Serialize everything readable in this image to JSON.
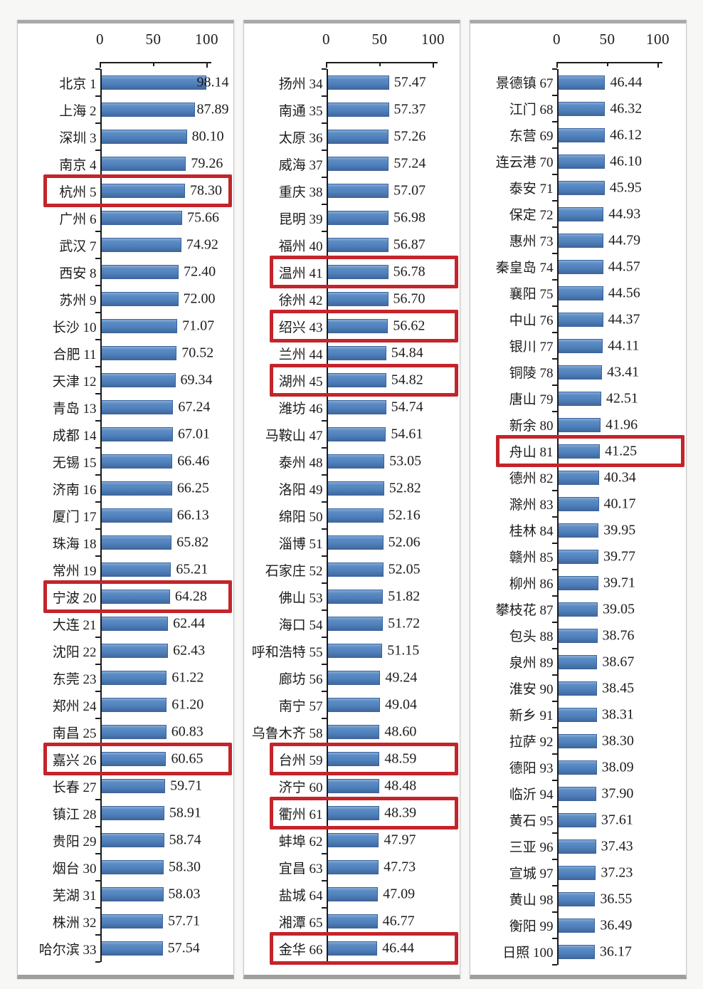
{
  "chart_data": [
    {
      "type": "bar",
      "orientation": "horizontal",
      "title": "",
      "xlabel": "",
      "ylabel": "",
      "xlim": [
        0,
        100
      ],
      "x_ticks": [
        "0",
        "50",
        "100"
      ],
      "grid": false,
      "bar_color": "#4f81bd",
      "highlight_box_color": "#c4242b",
      "rows": [
        {
          "label": "北京 1",
          "value": 98.14,
          "text": "98.14"
        },
        {
          "label": "上海 2",
          "value": 87.89,
          "text": "87.89"
        },
        {
          "label": "深圳 3",
          "value": 80.1,
          "text": "80.10"
        },
        {
          "label": "南京 4",
          "value": 79.26,
          "text": "79.26"
        },
        {
          "label": "杭州 5",
          "value": 78.3,
          "text": "78.30",
          "highlight": true
        },
        {
          "label": "广州 6",
          "value": 75.66,
          "text": "75.66"
        },
        {
          "label": "武汉 7",
          "value": 74.92,
          "text": "74.92"
        },
        {
          "label": "西安 8",
          "value": 72.4,
          "text": "72.40"
        },
        {
          "label": "苏州 9",
          "value": 72.0,
          "text": "72.00"
        },
        {
          "label": "长沙 10",
          "value": 71.07,
          "text": "71.07"
        },
        {
          "label": "合肥 11",
          "value": 70.52,
          "text": "70.52"
        },
        {
          "label": "天津 12",
          "value": 69.34,
          "text": "69.34"
        },
        {
          "label": "青岛 13",
          "value": 67.24,
          "text": "67.24"
        },
        {
          "label": "成都 14",
          "value": 67.01,
          "text": "67.01"
        },
        {
          "label": "无锡 15",
          "value": 66.46,
          "text": "66.46"
        },
        {
          "label": "济南 16",
          "value": 66.25,
          "text": "66.25"
        },
        {
          "label": "厦门 17",
          "value": 66.13,
          "text": "66.13"
        },
        {
          "label": "珠海 18",
          "value": 65.82,
          "text": "65.82"
        },
        {
          "label": "常州 19",
          "value": 65.21,
          "text": "65.21"
        },
        {
          "label": "宁波 20",
          "value": 64.28,
          "text": "64.28",
          "highlight": true
        },
        {
          "label": "大连 21",
          "value": 62.44,
          "text": "62.44"
        },
        {
          "label": "沈阳 22",
          "value": 62.43,
          "text": "62.43"
        },
        {
          "label": "东莞 23",
          "value": 61.22,
          "text": "61.22"
        },
        {
          "label": "郑州 24",
          "value": 61.2,
          "text": "61.20"
        },
        {
          "label": "南昌 25",
          "value": 60.83,
          "text": "60.83"
        },
        {
          "label": "嘉兴 26",
          "value": 60.65,
          "text": "60.65",
          "highlight": true
        },
        {
          "label": "长春 27",
          "value": 59.71,
          "text": "59.71"
        },
        {
          "label": "镇江 28",
          "value": 58.91,
          "text": "58.91"
        },
        {
          "label": "贵阳 29",
          "value": 58.74,
          "text": "58.74"
        },
        {
          "label": "烟台 30",
          "value": 58.3,
          "text": "58.30"
        },
        {
          "label": "芜湖 31",
          "value": 58.03,
          "text": "58.03"
        },
        {
          "label": "株洲 32",
          "value": 57.71,
          "text": "57.71"
        },
        {
          "label": "哈尔滨 33",
          "value": 57.54,
          "text": "57.54"
        }
      ]
    },
    {
      "type": "bar",
      "orientation": "horizontal",
      "title": "",
      "xlabel": "",
      "ylabel": "",
      "xlim": [
        0,
        100
      ],
      "x_ticks": [
        "0",
        "50",
        "100"
      ],
      "grid": false,
      "bar_color": "#4f81bd",
      "highlight_box_color": "#c4242b",
      "rows": [
        {
          "label": "扬州 34",
          "value": 57.47,
          "text": "57.47"
        },
        {
          "label": "南通 35",
          "value": 57.37,
          "text": "57.37"
        },
        {
          "label": "太原 36",
          "value": 57.26,
          "text": "57.26"
        },
        {
          "label": "威海 37",
          "value": 57.24,
          "text": "57.24"
        },
        {
          "label": "重庆 38",
          "value": 57.07,
          "text": "57.07"
        },
        {
          "label": "昆明 39",
          "value": 56.98,
          "text": "56.98"
        },
        {
          "label": "福州 40",
          "value": 56.87,
          "text": "56.87"
        },
        {
          "label": "温州 41",
          "value": 56.78,
          "text": "56.78",
          "highlight": true
        },
        {
          "label": "徐州 42",
          "value": 56.7,
          "text": "56.70"
        },
        {
          "label": "绍兴 43",
          "value": 56.62,
          "text": "56.62",
          "highlight": true
        },
        {
          "label": "兰州 44",
          "value": 54.84,
          "text": "54.84"
        },
        {
          "label": "湖州 45",
          "value": 54.82,
          "text": "54.82",
          "highlight": true
        },
        {
          "label": "潍坊 46",
          "value": 54.74,
          "text": "54.74"
        },
        {
          "label": "马鞍山 47",
          "value": 54.61,
          "text": "54.61"
        },
        {
          "label": "泰州 48",
          "value": 53.05,
          "text": "53.05"
        },
        {
          "label": "洛阳 49",
          "value": 52.82,
          "text": "52.82"
        },
        {
          "label": "绵阳 50",
          "value": 52.16,
          "text": "52.16"
        },
        {
          "label": "淄博 51",
          "value": 52.06,
          "text": "52.06"
        },
        {
          "label": "石家庄 52",
          "value": 52.05,
          "text": "52.05"
        },
        {
          "label": "佛山 53",
          "value": 51.82,
          "text": "51.82"
        },
        {
          "label": "海口 54",
          "value": 51.72,
          "text": "51.72"
        },
        {
          "label": "呼和浩特 55",
          "value": 51.15,
          "text": "51.15"
        },
        {
          "label": "廊坊 56",
          "value": 49.24,
          "text": "49.24"
        },
        {
          "label": "南宁 57",
          "value": 49.04,
          "text": "49.04"
        },
        {
          "label": "乌鲁木齐 58",
          "value": 48.6,
          "text": "48.60"
        },
        {
          "label": "台州 59",
          "value": 48.59,
          "text": "48.59",
          "highlight": true
        },
        {
          "label": "济宁 60",
          "value": 48.48,
          "text": "48.48"
        },
        {
          "label": "衢州 61",
          "value": 48.39,
          "text": "48.39",
          "highlight": true
        },
        {
          "label": "蚌埠 62",
          "value": 47.97,
          "text": "47.97"
        },
        {
          "label": "宜昌 63",
          "value": 47.73,
          "text": "47.73"
        },
        {
          "label": "盐城 64",
          "value": 47.09,
          "text": "47.09"
        },
        {
          "label": "湘潭 65",
          "value": 46.77,
          "text": "46.77"
        },
        {
          "label": "金华 66",
          "value": 46.44,
          "text": "46.44",
          "highlight": true
        }
      ]
    },
    {
      "type": "bar",
      "orientation": "horizontal",
      "title": "",
      "xlabel": "",
      "ylabel": "",
      "xlim": [
        0,
        100
      ],
      "x_ticks": [
        "0",
        "50",
        "100"
      ],
      "grid": false,
      "bar_color": "#4f81bd",
      "highlight_box_color": "#c4242b",
      "rows": [
        {
          "label": "景德镇 67",
          "value": 46.44,
          "text": "46.44"
        },
        {
          "label": "江门 68",
          "value": 46.32,
          "text": "46.32"
        },
        {
          "label": "东营 69",
          "value": 46.12,
          "text": "46.12"
        },
        {
          "label": "连云港 70",
          "value": 46.1,
          "text": "46.10"
        },
        {
          "label": "泰安 71",
          "value": 45.95,
          "text": "45.95"
        },
        {
          "label": "保定 72",
          "value": 44.93,
          "text": "44.93"
        },
        {
          "label": "惠州 73",
          "value": 44.79,
          "text": "44.79"
        },
        {
          "label": "秦皇岛 74",
          "value": 44.57,
          "text": "44.57"
        },
        {
          "label": "襄阳 75",
          "value": 44.56,
          "text": "44.56"
        },
        {
          "label": "中山 76",
          "value": 44.37,
          "text": "44.37"
        },
        {
          "label": "银川 77",
          "value": 44.11,
          "text": "44.11"
        },
        {
          "label": "铜陵 78",
          "value": 43.41,
          "text": "43.41"
        },
        {
          "label": "唐山 79",
          "value": 42.51,
          "text": "42.51"
        },
        {
          "label": "新余 80",
          "value": 41.96,
          "text": "41.96"
        },
        {
          "label": "舟山 81",
          "value": 41.25,
          "text": "41.25",
          "highlight": true
        },
        {
          "label": "德州 82",
          "value": 40.34,
          "text": "40.34"
        },
        {
          "label": "滁州 83",
          "value": 40.17,
          "text": "40.17"
        },
        {
          "label": "桂林 84",
          "value": 39.95,
          "text": "39.95"
        },
        {
          "label": "赣州 85",
          "value": 39.77,
          "text": "39.77"
        },
        {
          "label": "柳州 86",
          "value": 39.71,
          "text": "39.71"
        },
        {
          "label": "攀枝花 87",
          "value": 39.05,
          "text": "39.05"
        },
        {
          "label": "包头 88",
          "value": 38.76,
          "text": "38.76"
        },
        {
          "label": "泉州 89",
          "value": 38.67,
          "text": "38.67"
        },
        {
          "label": "淮安 90",
          "value": 38.45,
          "text": "38.45"
        },
        {
          "label": "新乡 91",
          "value": 38.31,
          "text": "38.31"
        },
        {
          "label": "拉萨 92",
          "value": 38.3,
          "text": "38.30"
        },
        {
          "label": "德阳 93",
          "value": 38.09,
          "text": "38.09"
        },
        {
          "label": "临沂 94",
          "value": 37.9,
          "text": "37.90"
        },
        {
          "label": "黄石 95",
          "value": 37.61,
          "text": "37.61"
        },
        {
          "label": "三亚 96",
          "value": 37.43,
          "text": "37.43"
        },
        {
          "label": "宣城 97",
          "value": 37.23,
          "text": "37.23"
        },
        {
          "label": "黄山 98",
          "value": 36.55,
          "text": "36.55"
        },
        {
          "label": "衡阳 99",
          "value": 36.49,
          "text": "36.49"
        },
        {
          "label": "日照 100",
          "value": 36.17,
          "text": "36.17"
        }
      ]
    }
  ]
}
